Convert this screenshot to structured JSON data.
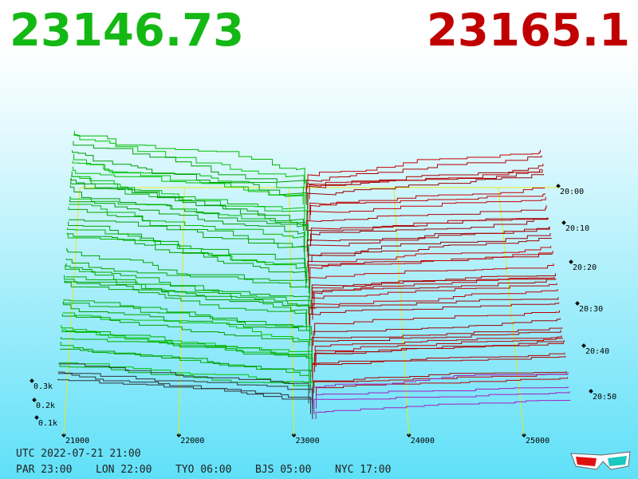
{
  "bid_price": "23146.73",
  "ask_price": "23165.1",
  "price_axis": [
    "21000",
    "22000",
    "23000",
    "24000",
    "25000"
  ],
  "depth_axis": [
    "0.3k",
    "0.2k",
    "0.1k"
  ],
  "time_axis": [
    "20:00",
    "20:10",
    "20:20",
    "20:30",
    "20:40",
    "20:50"
  ],
  "utc_time": "UTC 2022-07-21 21:00",
  "city_times": [
    "PAR 23:00",
    "LON 22:00",
    "TYO 06:00",
    "BJS 05:00",
    "NYC 17:00"
  ]
}
